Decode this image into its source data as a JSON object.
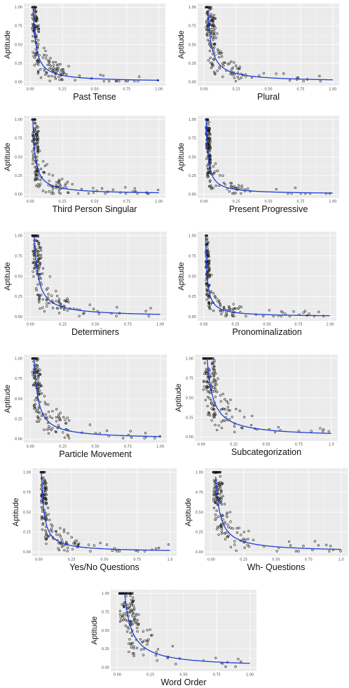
{
  "colors": {
    "fit_line": "#1f3fd6",
    "panel_bg": "#ebebeb",
    "points": "#1a1a1a"
  },
  "chart_data": [
    {
      "type": "scatter",
      "xlabel": "Past Tense",
      "ylabel": "Aptitude",
      "xlim": [
        0,
        1
      ],
      "ylim": [
        0,
        1
      ],
      "xticks": [
        "0.00",
        "0.25",
        "0.50",
        "0.75",
        "1.00"
      ],
      "yticks": [
        "0.00",
        "0.25",
        "0.50",
        "0.75",
        "1.00"
      ],
      "fit": {
        "k": 0.022,
        "xmin": 0.02
      },
      "points": {
        "n": 190,
        "seed": 11,
        "k": 0.022,
        "cluster": 0.05
      }
    },
    {
      "type": "scatter",
      "xlabel": "Plural",
      "ylabel": "Aptitude",
      "xlim": [
        0,
        1
      ],
      "ylim": [
        0,
        1
      ],
      "xticks": [
        "0.00",
        "0.25",
        "0.50",
        "0.75",
        "1.00"
      ],
      "yticks": [
        "0.00",
        "0.25",
        "0.50",
        "0.75",
        "1.00"
      ],
      "fit": {
        "k": 0.028,
        "xmin": 0.03
      },
      "points": {
        "n": 190,
        "seed": 23,
        "k": 0.028,
        "cluster": 0.07
      }
    },
    {
      "type": "scatter",
      "xlabel": "Third Person Singular",
      "ylabel": "Aptitude",
      "xlim": [
        0,
        1
      ],
      "ylim": [
        0,
        1
      ],
      "xticks": [
        "0.00",
        "0.25",
        "0.50",
        "0.75",
        "1.00"
      ],
      "yticks": [
        "0.00",
        "0.25",
        "0.50",
        "0.75",
        "1.00"
      ],
      "fit": {
        "k": 0.02,
        "xmin": 0.02
      },
      "points": {
        "n": 190,
        "seed": 37,
        "k": 0.02,
        "cluster": 0.05
      }
    },
    {
      "type": "scatter",
      "xlabel": "Present Progressive",
      "ylabel": "Aptitude",
      "xlim": [
        0,
        1
      ],
      "ylim": [
        0,
        1
      ],
      "xticks": [
        "0.00",
        "0.25",
        "0.50",
        "0.75",
        "1.00"
      ],
      "yticks": [
        "0.00",
        "0.25",
        "0.50",
        "0.75",
        "1.00"
      ],
      "fit": {
        "k": 0.016,
        "xmin": 0.015
      },
      "points": {
        "n": 190,
        "seed": 41,
        "k": 0.016,
        "cluster": 0.035
      }
    },
    {
      "type": "scatter",
      "xlabel": "Determiners",
      "ylabel": "Aptitude",
      "xlim": [
        0,
        1
      ],
      "ylim": [
        0,
        1
      ],
      "xticks": [
        "0.00",
        "0.25",
        "0.50",
        "0.75",
        "1.00"
      ],
      "yticks": [
        "0.00",
        "0.25",
        "0.50",
        "0.75",
        "1.00"
      ],
      "fit": {
        "k": 0.03,
        "xmin": 0.03
      },
      "points": {
        "n": 190,
        "seed": 53,
        "k": 0.03,
        "cluster": 0.07
      }
    },
    {
      "type": "scatter",
      "xlabel": "Pronominalization",
      "ylabel": "Aptitude",
      "xlim": [
        0,
        1
      ],
      "ylim": [
        0,
        1
      ],
      "xticks": [
        "0.00",
        "0.25",
        "0.50",
        "0.75",
        "1.00"
      ],
      "yticks": [
        "0.00",
        "0.25",
        "0.50",
        "0.75",
        "1.00"
      ],
      "fit": {
        "k": 0.013,
        "xmin": 0.013
      },
      "points": {
        "n": 190,
        "seed": 67,
        "k": 0.013,
        "cluster": 0.03
      }
    },
    {
      "type": "scatter",
      "xlabel": "Particle Movement",
      "ylabel": "Aptitude",
      "xlim": [
        0,
        1
      ],
      "ylim": [
        0,
        1
      ],
      "xticks": [
        "0.00",
        "0.25",
        "0.50",
        "0.75",
        "1.00"
      ],
      "yticks": [
        "0.00",
        "0.25",
        "0.50",
        "0.75",
        "1.00"
      ],
      "fit": {
        "k": 0.03,
        "xmin": 0.03
      },
      "points": {
        "n": 190,
        "seed": 71,
        "k": 0.03,
        "cluster": 0.06
      }
    },
    {
      "type": "scatter",
      "xlabel": "Subcategorization",
      "ylabel": "Aptitude",
      "xlim": [
        0,
        1
      ],
      "ylim": [
        0,
        1
      ],
      "xticks": [
        "0.00",
        "0.25",
        "0.50",
        "0.75",
        "1.0"
      ],
      "yticks": [
        "0.00",
        "0.25",
        "0.50",
        "0.75",
        "1.00"
      ],
      "fit": {
        "k": 0.045,
        "xmin": 0.045
      },
      "points": {
        "n": 190,
        "seed": 83,
        "k": 0.045,
        "cluster": 0.1
      }
    },
    {
      "type": "scatter",
      "xlabel": "Yes/No Questions",
      "ylabel": "Aptitude",
      "xlim": [
        0,
        1
      ],
      "ylim": [
        0,
        1
      ],
      "xticks": [
        "0.00",
        "0.25",
        "0.50",
        "0.75",
        "1.0"
      ],
      "yticks": [
        "0.00",
        "0.25",
        "0.50",
        "0.75",
        "1.00"
      ],
      "fit": {
        "k": 0.02,
        "xmin": 0.02
      },
      "points": {
        "n": 190,
        "seed": 97,
        "k": 0.02,
        "cluster": 0.045
      }
    },
    {
      "type": "scatter",
      "xlabel": "Wh- Questions",
      "ylabel": "Aptitude",
      "xlim": [
        0,
        1
      ],
      "ylim": [
        0,
        1
      ],
      "xticks": [
        "0.00",
        "0.25",
        "0.50",
        "0.75",
        "1.0"
      ],
      "yticks": [
        "0.00",
        "0.25",
        "0.50",
        "0.75",
        "1.00"
      ],
      "fit": {
        "k": 0.033,
        "xmin": 0.035
      },
      "points": {
        "n": 190,
        "seed": 101,
        "k": 0.033,
        "cluster": 0.07
      }
    },
    {
      "type": "scatter",
      "xlabel": "Word Order",
      "ylabel": "Aptitude",
      "xlim": [
        0,
        1
      ],
      "ylim": [
        0,
        1
      ],
      "xticks": [
        "0.00",
        "0.25",
        "0.50",
        "0.75",
        "1.00"
      ],
      "yticks": [
        "0.00",
        "0.25",
        "0.50",
        "0.75",
        "1.00"
      ],
      "fit": {
        "k": 0.055,
        "xmin": 0.055
      },
      "points": {
        "n": 190,
        "seed": 113,
        "k": 0.055,
        "cluster": 0.12
      }
    }
  ]
}
